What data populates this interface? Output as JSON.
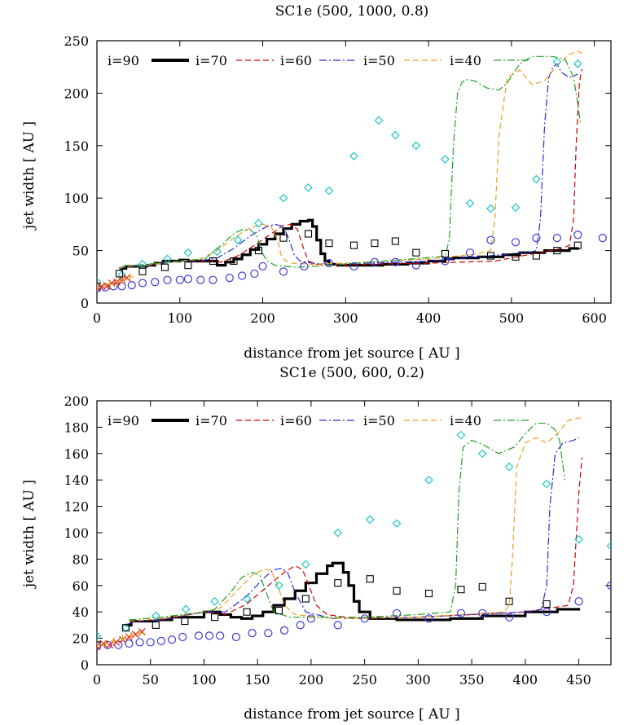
{
  "chart_data": [
    {
      "type": "line",
      "title": "SC1e (500, 1000, 0.8)",
      "xlabel": "distance from jet source [ AU ]",
      "ylabel": "jet width [ AU ]",
      "xlim": [
        0,
        620
      ],
      "ylim": [
        0,
        250
      ],
      "xticks": [
        0,
        100,
        200,
        300,
        400,
        500,
        600
      ],
      "yticks": [
        0,
        50,
        100,
        150,
        200,
        250
      ],
      "legend": [
        "i=90",
        "i=70",
        "i=60",
        "i=50",
        "i=40"
      ],
      "legend_position": "top-left",
      "colors": {
        "i90": "#000000",
        "i70": "#cc0000",
        "i60": "#2a2ad4",
        "i50": "#e8a020",
        "i40": "#20a020",
        "diamond": "#19c8c8",
        "square": "#000000",
        "circle": "#3a3ad8",
        "cross": "#e02020",
        "plus": "#e8a020"
      },
      "series": [
        {
          "name": "i=90",
          "style": "thick-step",
          "x": [
            27,
            35,
            60,
            70,
            80,
            100,
            110,
            140,
            145,
            155,
            165,
            175,
            185,
            195,
            205,
            215,
            225,
            235,
            245,
            255,
            260,
            265,
            270,
            275,
            280,
            290,
            300,
            330,
            345,
            375,
            400,
            420,
            430,
            460,
            490,
            510,
            540,
            570,
            580
          ],
          "y": [
            33,
            35,
            36,
            38,
            40,
            41,
            40,
            40,
            36,
            39,
            42,
            46,
            51,
            56,
            61,
            66,
            71,
            75,
            78,
            79,
            73,
            60,
            47,
            40,
            37,
            36,
            36,
            36,
            37,
            38,
            40,
            42,
            43,
            44,
            46,
            48,
            50,
            52,
            53
          ]
        },
        {
          "name": "i=70",
          "style": "dashed",
          "x": [
            27,
            35,
            60,
            100,
            140,
            150,
            170,
            190,
            210,
            225,
            235,
            242,
            248,
            255,
            265,
            280,
            300,
            330,
            400,
            480,
            520,
            560,
            570,
            575,
            578,
            582,
            585
          ],
          "y": [
            33,
            35,
            36,
            40,
            40,
            39,
            45,
            55,
            66,
            74,
            75,
            70,
            55,
            40,
            37,
            36,
            36,
            37,
            38,
            40,
            46,
            52,
            55,
            80,
            150,
            210,
            223
          ]
        },
        {
          "name": "i=60",
          "style": "dashdot",
          "x": [
            27,
            35,
            60,
            100,
            130,
            145,
            165,
            185,
            205,
            215,
            225,
            232,
            238,
            245,
            260,
            280,
            330,
            400,
            460,
            500,
            520,
            530,
            535,
            540,
            545,
            550,
            555,
            560,
            570,
            580
          ],
          "y": [
            33,
            35,
            36,
            40,
            41,
            43,
            52,
            64,
            73,
            75,
            73,
            60,
            46,
            40,
            38,
            37,
            38,
            40,
            44,
            47,
            48,
            50,
            80,
            170,
            215,
            225,
            228,
            220,
            215,
            218
          ]
        },
        {
          "name": "i=50",
          "style": "dashed",
          "x": [
            27,
            35,
            60,
            100,
            125,
            145,
            165,
            185,
            200,
            210,
            218,
            222,
            228,
            235,
            260,
            300,
            400,
            460,
            475,
            480,
            485,
            495,
            510,
            525,
            540,
            555,
            570,
            580,
            585
          ],
          "y": [
            33,
            35,
            36,
            40,
            42,
            50,
            62,
            72,
            75,
            73,
            60,
            46,
            40,
            38,
            37,
            38,
            42,
            47,
            50,
            80,
            160,
            215,
            222,
            208,
            212,
            226,
            237,
            240,
            238
          ]
        },
        {
          "name": "i=40",
          "style": "dashdot",
          "x": [
            30,
            60,
            100,
            130,
            150,
            165,
            175,
            185,
            193,
            198,
            205,
            215,
            240,
            280,
            330,
            380,
            410,
            420,
            425,
            430,
            435,
            440,
            445,
            455,
            470,
            485,
            495,
            510,
            525,
            540,
            550,
            565,
            575,
            580,
            583
          ],
          "y": [
            35,
            37,
            40,
            42,
            55,
            66,
            70,
            70,
            64,
            50,
            40,
            36,
            34,
            36,
            39,
            42,
            44,
            45,
            60,
            150,
            200,
            210,
            213,
            212,
            205,
            203,
            210,
            228,
            235,
            235,
            235,
            232,
            215,
            190,
            172
          ]
        }
      ],
      "markers": {
        "diamond": {
          "x": [
            0,
            30,
            55,
            85,
            110,
            145,
            170,
            195,
            225,
            255,
            280,
            310,
            340,
            360,
            385,
            420,
            450,
            475,
            505,
            530,
            555,
            580
          ],
          "y": [
            20,
            27,
            37,
            42,
            48,
            49,
            60,
            76,
            100,
            110,
            107,
            140,
            174,
            160,
            150,
            137,
            95,
            90,
            91,
            118,
            230,
            228
          ]
        },
        "square": {
          "x": [
            0,
            27,
            55,
            82,
            110,
            140,
            165,
            195,
            225,
            255,
            280,
            310,
            335,
            360,
            385,
            420,
            475,
            505,
            530,
            555,
            580
          ],
          "y": [
            16,
            28,
            30,
            34,
            36,
            40,
            40,
            50,
            62,
            66,
            57,
            55,
            57,
            59,
            48,
            47,
            45,
            44,
            45,
            50,
            55
          ]
        },
        "circle": {
          "x": [
            0,
            10,
            20,
            30,
            42,
            55,
            70,
            85,
            100,
            110,
            125,
            140,
            160,
            175,
            190,
            200,
            225,
            250,
            280,
            310,
            335,
            360,
            385,
            420,
            450,
            475,
            505,
            530,
            555,
            580,
            610
          ],
          "y": [
            14,
            15,
            16,
            16,
            17,
            19,
            20,
            22,
            22,
            23,
            22,
            22,
            24,
            26,
            28,
            35,
            30,
            35,
            38,
            35,
            39,
            39,
            36,
            40,
            48,
            60,
            58,
            62,
            62,
            65,
            62
          ]
        },
        "cross": {
          "x": [
            0,
            6,
            12,
            18,
            24,
            30,
            36
          ],
          "y": [
            14,
            16,
            16,
            19,
            20,
            22,
            24
          ]
        },
        "plus": {
          "x": [
            0,
            8,
            16,
            24,
            32,
            40
          ],
          "y": [
            15,
            17,
            18,
            20,
            22,
            25
          ]
        }
      }
    },
    {
      "type": "line",
      "title": "SC1e (500, 600, 0.2)",
      "xlabel": "distance from jet source [ AU ]",
      "ylabel": "jet width [ AU ]",
      "xlim": [
        0,
        480
      ],
      "ylim": [
        0,
        200
      ],
      "xticks": [
        0,
        50,
        100,
        150,
        200,
        250,
        300,
        350,
        400,
        450
      ],
      "yticks": [
        0,
        20,
        40,
        60,
        80,
        100,
        120,
        140,
        160,
        180,
        200
      ],
      "legend": [
        "i=90",
        "i=70",
        "i=60",
        "i=50",
        "i=40"
      ],
      "legend_position": "top-left",
      "colors": {
        "i90": "#000000",
        "i70": "#cc0000",
        "i60": "#2a2ad4",
        "i50": "#e8a020",
        "i40": "#20a020",
        "diamond": "#19c8c8",
        "square": "#000000",
        "circle": "#3a3ad8",
        "cross": "#e02020",
        "plus": "#e8a020"
      },
      "series": [
        {
          "name": "i=90",
          "style": "thick-step",
          "x": [
            27,
            32,
            55,
            70,
            100,
            115,
            125,
            135,
            145,
            155,
            165,
            175,
            185,
            195,
            205,
            215,
            220,
            225,
            230,
            235,
            240,
            245,
            255,
            280,
            330,
            360,
            400,
            430,
            450
          ],
          "y": [
            30,
            33,
            34,
            36,
            40,
            38,
            36,
            35,
            37,
            40,
            45,
            50,
            56,
            62,
            69,
            75,
            77,
            77,
            70,
            60,
            48,
            40,
            35,
            34,
            35,
            37,
            40,
            42,
            43
          ]
        },
        {
          "name": "i=70",
          "style": "dashed",
          "x": [
            27,
            35,
            60,
            100,
            120,
            140,
            160,
            175,
            185,
            192,
            198,
            205,
            215,
            240,
            300,
            400,
            440,
            445,
            450,
            453
          ],
          "y": [
            30,
            33,
            34,
            40,
            38,
            46,
            60,
            70,
            75,
            72,
            60,
            45,
            38,
            35,
            36,
            40,
            45,
            60,
            130,
            157
          ]
        },
        {
          "name": "i=60",
          "style": "dashdot",
          "x": [
            27,
            35,
            60,
            100,
            120,
            140,
            155,
            165,
            172,
            178,
            185,
            195,
            220,
            300,
            400,
            415,
            420,
            423,
            428,
            435,
            445,
            450
          ],
          "y": [
            30,
            33,
            34,
            40,
            40,
            52,
            65,
            72,
            73,
            70,
            55,
            40,
            35,
            36,
            40,
            42,
            60,
            120,
            160,
            168,
            170,
            172
          ]
        },
        {
          "name": "i=50",
          "style": "dashed",
          "x": [
            30,
            60,
            100,
            115,
            130,
            145,
            155,
            162,
            168,
            175,
            185,
            220,
            300,
            380,
            385,
            388,
            392,
            400,
            410,
            420,
            430,
            440,
            450,
            455
          ],
          "y": [
            33,
            35,
            40,
            43,
            55,
            68,
            72,
            72,
            62,
            45,
            38,
            35,
            36,
            40,
            45,
            80,
            150,
            168,
            172,
            168,
            175,
            185,
            187,
            187
          ]
        },
        {
          "name": "i=40",
          "style": "dashdot",
          "x": [
            30,
            60,
            100,
            110,
            125,
            135,
            145,
            152,
            158,
            165,
            180,
            250,
            300,
            330,
            335,
            338,
            342,
            350,
            360,
            375,
            390,
            400,
            410,
            420,
            428,
            432,
            437
          ],
          "y": [
            34,
            36,
            40,
            42,
            55,
            66,
            70,
            68,
            55,
            40,
            36,
            36,
            38,
            40,
            60,
            130,
            165,
            170,
            167,
            160,
            165,
            175,
            183,
            183,
            178,
            170,
            140
          ]
        }
      ],
      "markers": {
        "diamond": {
          "x": [
            0,
            27,
            55,
            83,
            110,
            140,
            170,
            195,
            225,
            255,
            280,
            310,
            340,
            360,
            385,
            420,
            450,
            480
          ],
          "y": [
            22,
            28,
            37,
            42,
            48,
            50,
            60,
            76,
            100,
            110,
            107,
            140,
            174,
            160,
            150,
            137,
            95,
            90
          ]
        },
        "square": {
          "x": [
            0,
            27,
            55,
            82,
            110,
            140,
            170,
            195,
            225,
            255,
            280,
            310,
            340,
            360,
            385,
            420
          ],
          "y": [
            15,
            28,
            30,
            33,
            36,
            40,
            41,
            50,
            62,
            65,
            56,
            54,
            57,
            59,
            48,
            46
          ]
        },
        "circle": {
          "x": [
            0,
            10,
            20,
            30,
            40,
            50,
            60,
            70,
            80,
            95,
            105,
            115,
            130,
            145,
            160,
            175,
            190,
            200,
            225,
            250,
            280,
            310,
            340,
            360,
            385,
            420,
            450,
            480
          ],
          "y": [
            14,
            15,
            15,
            16,
            17,
            17,
            18,
            19,
            21,
            22,
            22,
            22,
            21,
            24,
            24,
            26,
            30,
            35,
            30,
            35,
            39,
            35,
            39,
            39,
            36,
            40,
            48,
            60
          ]
        },
        "cross": {
          "x": [
            0,
            6,
            12,
            18,
            24,
            30,
            36,
            42
          ],
          "y": [
            14,
            16,
            15,
            17,
            19,
            21,
            23,
            25
          ]
        },
        "plus": {
          "x": [
            0,
            8,
            16,
            24,
            32,
            40
          ],
          "y": [
            15,
            16,
            18,
            20,
            22,
            24
          ]
        }
      }
    }
  ]
}
